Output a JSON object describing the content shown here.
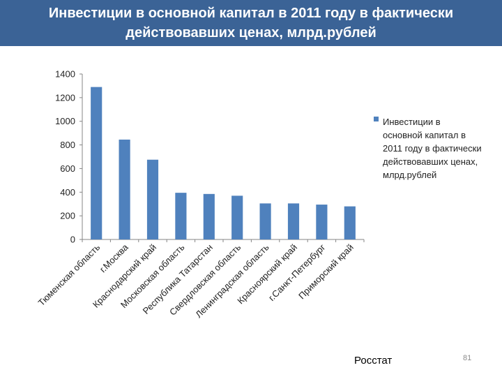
{
  "slide": {
    "title": "Инвестиции в основной капитал в 2011 году в фактически действовавших ценах, млрд.рублей",
    "source": "Росстат",
    "page_number": "81"
  },
  "colors": {
    "title_bar": "#3b6396",
    "bar": "#4f81bd",
    "axis": "#868686",
    "gridline": "#d9d9d9"
  },
  "chart_data": {
    "type": "bar",
    "categories": [
      "Тюменская область",
      "г.Москва",
      "Краснодарский край",
      "Московская область",
      "Республика Татарстан",
      "Свердловская область",
      "Ленинградская область",
      "Красноярский край",
      "г.Санкт-Петербург",
      "Приморский край"
    ],
    "series": [
      {
        "name": "Инвестиции в основной капитал в 2011 году в фактически действовавших ценах, млрд.рублей",
        "values": [
          1290,
          845,
          675,
          395,
          385,
          370,
          305,
          305,
          295,
          280
        ]
      }
    ],
    "ylim": [
      0,
      1400
    ],
    "yticks": [
      "0",
      "200",
      "400",
      "600",
      "800",
      "1000",
      "1200",
      "1400"
    ],
    "grid": false,
    "legend_position": "right"
  }
}
